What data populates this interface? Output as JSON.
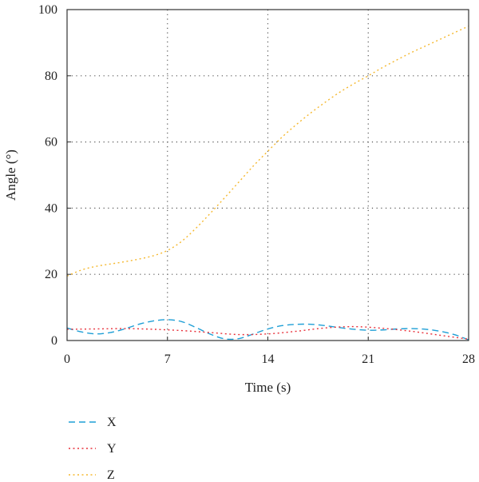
{
  "chart_data": {
    "type": "line",
    "title": "",
    "xlabel": "Time (s)",
    "ylabel": "Angle (°)",
    "xlim": [
      0,
      28
    ],
    "ylim": [
      0,
      100
    ],
    "xticks": [
      0,
      7,
      14,
      21,
      28
    ],
    "yticks": [
      0,
      20,
      40,
      60,
      80,
      100
    ],
    "grid": true,
    "legend_position": "bottom-left",
    "series": [
      {
        "name": "X",
        "color": "#1f9fd6",
        "dash": "dashed",
        "x": [
          0,
          1,
          2,
          3,
          4,
          5,
          6,
          7,
          8,
          9,
          10,
          11,
          12,
          13,
          14,
          15,
          16,
          17,
          18,
          19,
          20,
          21,
          22,
          23,
          24,
          25,
          26,
          27,
          28
        ],
        "y": [
          3.8,
          2.6,
          2.0,
          2.4,
          3.5,
          4.9,
          5.9,
          6.3,
          5.7,
          3.9,
          1.9,
          0.5,
          0.6,
          2.0,
          3.5,
          4.5,
          4.9,
          4.9,
          4.5,
          3.9,
          3.4,
          3.1,
          3.2,
          3.5,
          3.6,
          3.4,
          2.8,
          1.8,
          0.2
        ]
      },
      {
        "name": "Y",
        "color": "#e8303a",
        "dash": "dotted",
        "x": [
          0,
          2,
          4,
          6,
          8,
          10,
          12,
          14,
          16,
          18,
          20,
          22,
          24,
          26,
          28
        ],
        "y": [
          3.4,
          3.5,
          3.6,
          3.4,
          3.0,
          2.4,
          1.8,
          2.0,
          2.8,
          3.8,
          4.2,
          3.7,
          2.8,
          1.6,
          0.4
        ]
      },
      {
        "name": "Z",
        "color": "#f5b82e",
        "dash": "dotted",
        "x": [
          0,
          1,
          2,
          3,
          4,
          5,
          6,
          7,
          8,
          9,
          10,
          11,
          12,
          13,
          14,
          15,
          16,
          17,
          18,
          19,
          20,
          21,
          22,
          23,
          24,
          25,
          26,
          27,
          28
        ],
        "y": [
          19.5,
          21.3,
          22.4,
          23.1,
          23.8,
          24.6,
          25.6,
          27.2,
          30.0,
          34.0,
          38.5,
          43.2,
          48.0,
          52.8,
          57.2,
          61.5,
          65.3,
          68.8,
          72.0,
          75.0,
          77.6,
          80.0,
          82.5,
          84.8,
          87.0,
          89.0,
          91.0,
          93.0,
          95.0
        ]
      }
    ]
  }
}
